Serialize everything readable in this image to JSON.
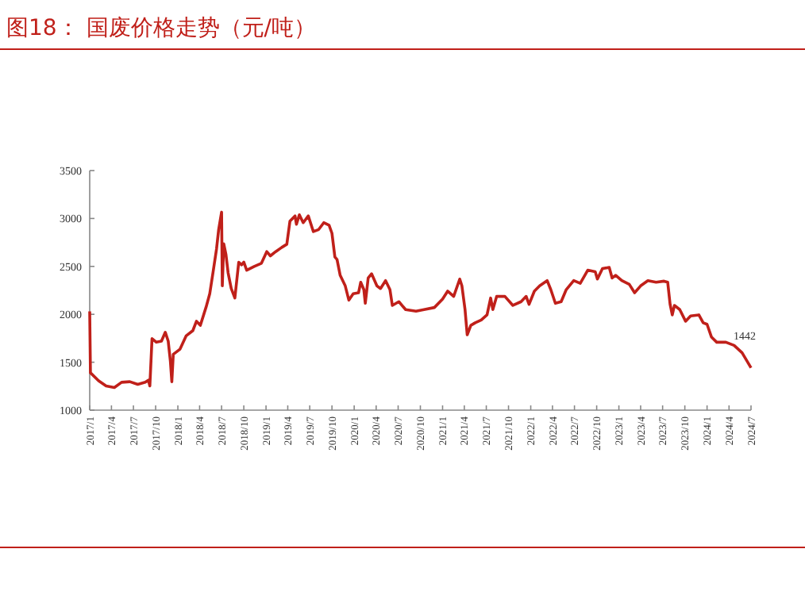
{
  "chart_data": {
    "type": "line",
    "title": "图18：  国废价格走势（元/吨）",
    "x": [
      "2017-01-01",
      "2017-01-04",
      "2017-02-07",
      "2017-03-10",
      "2017-04-13",
      "2017-05-13",
      "2017-06-16",
      "2017-07-19",
      "2017-08-19",
      "2017-09-01",
      "2017-09-07",
      "2017-09-16",
      "2017-10-04",
      "2017-10-25",
      "2017-11-10",
      "2017-11-22",
      "2017-12-01",
      "2017-12-07",
      "2017-12-13",
      "2018-01-10",
      "2018-02-04",
      "2018-03-04",
      "2018-03-19",
      "2018-04-04",
      "2018-04-28",
      "2018-05-13",
      "2018-05-28",
      "2018-06-10",
      "2018-06-19",
      "2018-07-01",
      "2018-07-04",
      "2018-07-10",
      "2018-07-19",
      "2018-07-28",
      "2018-08-10",
      "2018-08-25",
      "2018-09-10",
      "2018-09-22",
      "2018-10-01",
      "2018-10-13",
      "2018-11-13",
      "2018-12-13",
      "2019-01-04",
      "2019-01-19",
      "2019-02-10",
      "2019-03-07",
      "2019-03-28",
      "2019-04-10",
      "2019-05-01",
      "2019-05-07",
      "2019-05-19",
      "2019-06-04",
      "2019-06-25",
      "2019-07-16",
      "2019-08-07",
      "2019-08-28",
      "2019-09-19",
      "2019-10-01",
      "2019-10-13",
      "2019-10-22",
      "2019-11-04",
      "2019-11-25",
      "2019-12-10",
      "2019-12-28",
      "2020-01-19",
      "2020-01-28",
      "2020-02-10",
      "2020-02-16",
      "2020-02-28",
      "2020-03-13",
      "2020-04-04",
      "2020-04-19",
      "2020-05-10",
      "2020-05-28",
      "2020-06-07",
      "2020-07-04",
      "2020-08-01",
      "2020-09-13",
      "2020-10-16",
      "2020-11-28",
      "2021-01-01",
      "2021-01-22",
      "2021-02-16",
      "2021-03-13",
      "2021-03-22",
      "2021-04-04",
      "2021-04-13",
      "2021-04-28",
      "2021-05-16",
      "2021-06-10",
      "2021-07-04",
      "2021-07-19",
      "2021-07-28",
      "2021-08-13",
      "2021-09-16",
      "2021-10-19",
      "2021-11-22",
      "2021-12-13",
      "2021-12-25",
      "2022-01-16",
      "2022-02-07",
      "2022-03-10",
      "2022-03-25",
      "2022-04-13",
      "2022-05-07",
      "2022-05-28",
      "2022-06-28",
      "2022-07-25",
      "2022-08-25",
      "2022-09-25",
      "2022-10-04",
      "2022-10-25",
      "2022-11-22",
      "2022-12-04",
      "2022-12-19",
      "2023-01-13",
      "2023-02-13",
      "2023-03-07",
      "2023-04-01",
      "2023-05-01",
      "2023-06-04",
      "2023-07-07",
      "2023-07-22",
      "2023-08-01",
      "2023-08-10",
      "2023-08-19",
      "2023-09-10",
      "2023-10-04",
      "2023-10-25",
      "2023-11-28",
      "2023-12-16",
      "2024-01-01",
      "2024-01-19",
      "2024-02-10",
      "2024-03-19",
      "2024-04-22",
      "2024-05-25",
      "2024-07-01"
    ],
    "series": [
      {
        "color": "#c0201a",
        "values": [
          2030,
          1390,
          1307,
          1253,
          1236,
          1291,
          1297,
          1269,
          1291,
          1313,
          1253,
          1747,
          1709,
          1720,
          1813,
          1720,
          1511,
          1297,
          1582,
          1637,
          1775,
          1830,
          1928,
          1885,
          2077,
          2214,
          2461,
          2681,
          2885,
          3066,
          2297,
          2736,
          2626,
          2434,
          2269,
          2170,
          2544,
          2516,
          2544,
          2461,
          2500,
          2533,
          2654,
          2610,
          2654,
          2698,
          2731,
          2973,
          3027,
          2940,
          3038,
          2956,
          3027,
          2863,
          2885,
          2956,
          2929,
          2846,
          2599,
          2571,
          2407,
          2297,
          2148,
          2214,
          2225,
          2335,
          2258,
          2115,
          2379,
          2423,
          2297,
          2269,
          2352,
          2258,
          2093,
          2132,
          2049,
          2033,
          2049,
          2071,
          2159,
          2242,
          2187,
          2368,
          2297,
          2049,
          1786,
          1885,
          1912,
          1940,
          1994,
          2170,
          2049,
          2187,
          2187,
          2093,
          2132,
          2187,
          2104,
          2242,
          2297,
          2352,
          2258,
          2115,
          2132,
          2258,
          2352,
          2324,
          2461,
          2445,
          2368,
          2478,
          2489,
          2379,
          2407,
          2352,
          2313,
          2225,
          2297,
          2352,
          2335,
          2346,
          2335,
          2104,
          1994,
          2093,
          2049,
          1928,
          1983,
          1994,
          1912,
          1896,
          1764,
          1709,
          1709,
          1676,
          1599,
          1442
        ]
      }
    ],
    "xlim": [
      "2017-01-01",
      "2024-07-01"
    ],
    "xticks": [
      {
        "value": "2017-01",
        "label": "2017/1"
      },
      {
        "value": "2017-04",
        "label": "2017/4"
      },
      {
        "value": "2017-07",
        "label": "2017/7"
      },
      {
        "value": "2017-10",
        "label": "2017/10"
      },
      {
        "value": "2018-01",
        "label": "2018/1"
      },
      {
        "value": "2018-04",
        "label": "2018/4"
      },
      {
        "value": "2018-07",
        "label": "2018/7"
      },
      {
        "value": "2018-10",
        "label": "2018/10"
      },
      {
        "value": "2019-01",
        "label": "2019/1"
      },
      {
        "value": "2019-04",
        "label": "2019/4"
      },
      {
        "value": "2019-07",
        "label": "2019/7"
      },
      {
        "value": "2019-10",
        "label": "2019/10"
      },
      {
        "value": "2020-01",
        "label": "2020/1"
      },
      {
        "value": "2020-04",
        "label": "2020/4"
      },
      {
        "value": "2020-07",
        "label": "2020/7"
      },
      {
        "value": "2020-10",
        "label": "2020/10"
      },
      {
        "value": "2021-01",
        "label": "2021/1"
      },
      {
        "value": "2021-04",
        "label": "2021/4"
      },
      {
        "value": "2021-07",
        "label": "2021/7"
      },
      {
        "value": "2021-10",
        "label": "2021/10"
      },
      {
        "value": "2022-01",
        "label": "2022/1"
      },
      {
        "value": "2022-04",
        "label": "2022/4"
      },
      {
        "value": "2022-07",
        "label": "2022/7"
      },
      {
        "value": "2022-10",
        "label": "2022/10"
      },
      {
        "value": "2023-01",
        "label": "2023/1"
      },
      {
        "value": "2023-04",
        "label": "2023/4"
      },
      {
        "value": "2023-07",
        "label": "2023/7"
      },
      {
        "value": "2023-10",
        "label": "2023/10"
      },
      {
        "value": "2024-01",
        "label": "2024/1"
      },
      {
        "value": "2024-04",
        "label": "2024/4"
      },
      {
        "value": "2024-07",
        "label": "2024/7"
      }
    ],
    "ylim": [
      1000,
      3500
    ],
    "yticks": [
      1000,
      1500,
      2000,
      2500,
      3000,
      3500
    ],
    "annotations": [
      {
        "text": "1442",
        "x": "2024-07-01",
        "y": 1442
      }
    ]
  }
}
